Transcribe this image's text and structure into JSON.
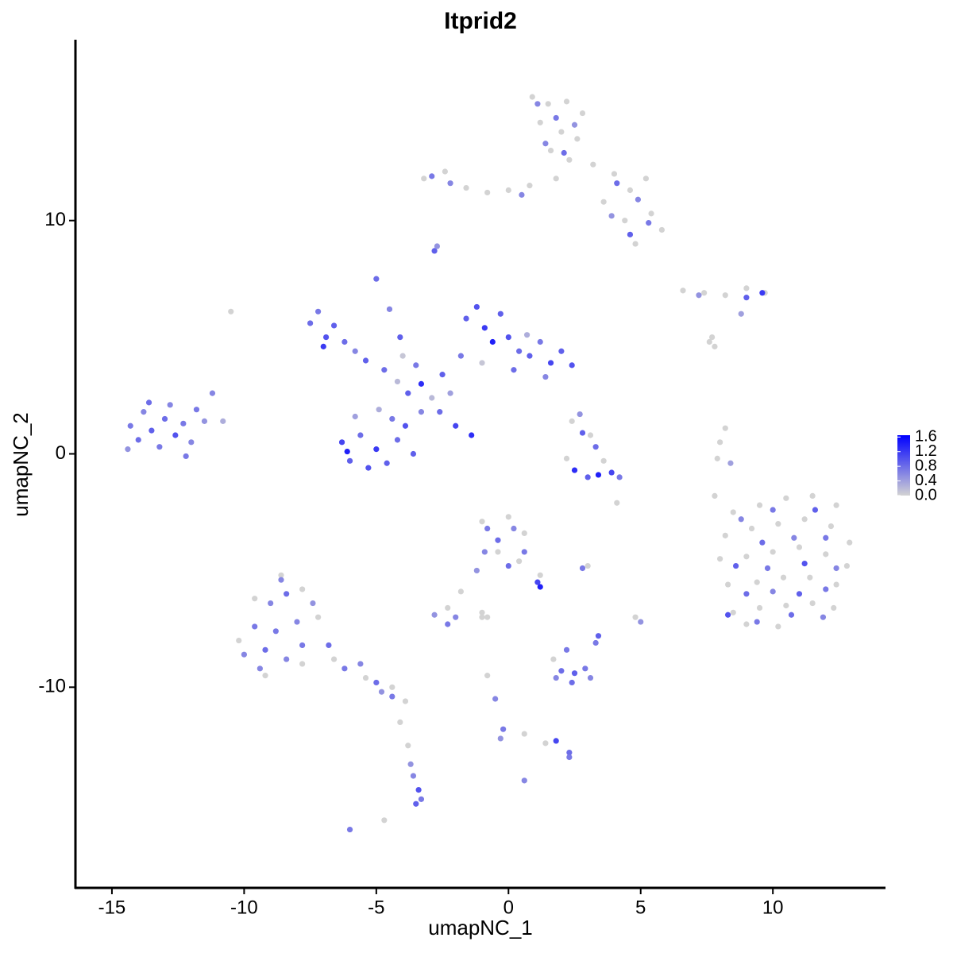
{
  "chart_data": {
    "type": "scatter",
    "title": "Itprid2",
    "x_label": "umapNC_1",
    "y_label": "umapNC_2",
    "xlim": [
      -16.38,
      14.26
    ],
    "ylim": [
      -18.6,
      17.75
    ],
    "xticks": [
      -15,
      -10,
      -5,
      0,
      5,
      10
    ],
    "yticks": [
      -10,
      0,
      10
    ],
    "color_low": "#d3d3d3",
    "color_high": "#0000ff",
    "colorbar_lim": [
      0,
      1.65
    ],
    "colorbar_ticks": [
      {
        "value": 0,
        "label": "0.0"
      },
      0.4,
      0.8,
      1.2,
      1.6
    ],
    "points": [
      [
        -14.3,
        1.2,
        0.7
      ],
      [
        -14.0,
        0.6,
        0.8
      ],
      [
        -13.8,
        1.8,
        0.6
      ],
      [
        -13.5,
        1.0,
        0.9
      ],
      [
        -13.2,
        0.3,
        0.7
      ],
      [
        -13.0,
        1.5,
        0.8
      ],
      [
        -12.8,
        2.1,
        0.6
      ],
      [
        -12.6,
        0.8,
        1.0
      ],
      [
        -12.3,
        1.3,
        0.7
      ],
      [
        -12.0,
        0.5,
        0.6
      ],
      [
        -11.8,
        1.9,
        0.7
      ],
      [
        -11.5,
        1.4,
        0.5
      ],
      [
        -11.2,
        2.6,
        0.6
      ],
      [
        -10.8,
        1.4,
        0.3
      ],
      [
        -14.4,
        0.2,
        0.5
      ],
      [
        -12.2,
        -0.1,
        0.7
      ],
      [
        -13.6,
        2.2,
        0.8
      ],
      [
        -6.3,
        0.5,
        1.1
      ],
      [
        -6.0,
        -0.3,
        0.9
      ],
      [
        -5.6,
        0.8,
        0.8
      ],
      [
        -5.3,
        -0.6,
        1.0
      ],
      [
        -5.0,
        0.2,
        1.2
      ],
      [
        -4.6,
        -0.4,
        0.9
      ],
      [
        -4.2,
        0.6,
        0.8
      ],
      [
        -3.9,
        1.2,
        1.0
      ],
      [
        -3.6,
        0.0,
        0.9
      ],
      [
        -5.8,
        1.6,
        0.4
      ],
      [
        -4.9,
        1.9,
        0.3
      ],
      [
        -4.4,
        1.5,
        0.7
      ],
      [
        -3.3,
        1.8,
        0.6
      ],
      [
        -6.1,
        0.1,
        1.4
      ],
      [
        -7.5,
        5.6,
        0.8
      ],
      [
        -7.2,
        6.1,
        0.7
      ],
      [
        -6.9,
        5.0,
        1.0
      ],
      [
        -6.6,
        5.5,
        0.9
      ],
      [
        -6.2,
        4.8,
        0.8
      ],
      [
        -5.8,
        4.4,
        0.6
      ],
      [
        -5.4,
        4.0,
        0.9
      ],
      [
        -7.0,
        4.6,
        1.2
      ],
      [
        -4.7,
        3.6,
        0.8
      ],
      [
        -4.2,
        3.1,
        0.2
      ],
      [
        -3.8,
        2.6,
        0.9
      ],
      [
        -3.3,
        3.0,
        1.3
      ],
      [
        -2.9,
        2.4,
        0.2
      ],
      [
        -2.5,
        3.4,
        0.9
      ],
      [
        -4.0,
        4.2,
        0.1
      ],
      [
        -3.5,
        3.8,
        0.7
      ],
      [
        -2.2,
        2.6,
        0.4
      ],
      [
        -5.0,
        7.5,
        0.8
      ],
      [
        -4.5,
        6.2,
        0.6
      ],
      [
        -4.1,
        5.0,
        0.9
      ],
      [
        -2.6,
        1.8,
        0.8
      ],
      [
        -2.0,
        1.2,
        1.1
      ],
      [
        -1.4,
        0.8,
        1.3
      ],
      [
        -1.6,
        5.8,
        0.9
      ],
      [
        -1.2,
        6.3,
        1.0
      ],
      [
        -0.9,
        5.4,
        1.2
      ],
      [
        -0.6,
        4.8,
        1.4
      ],
      [
        -0.3,
        6.0,
        0.9
      ],
      [
        0.0,
        5.0,
        1.0
      ],
      [
        0.4,
        4.4,
        0.8
      ],
      [
        0.8,
        4.2,
        0.9
      ],
      [
        1.2,
        4.8,
        0.7
      ],
      [
        1.6,
        3.9,
        1.1
      ],
      [
        2.0,
        4.4,
        0.9
      ],
      [
        2.4,
        3.8,
        1.0
      ],
      [
        -1.8,
        4.2,
        0.7
      ],
      [
        0.2,
        3.6,
        0.8
      ],
      [
        1.4,
        3.3,
        0.6
      ],
      [
        -1.0,
        3.9,
        0.1
      ],
      [
        0.7,
        5.1,
        0.3
      ],
      [
        0.9,
        15.3,
        0.0
      ],
      [
        1.5,
        15.0,
        0.0
      ],
      [
        2.2,
        15.1,
        0.0
      ],
      [
        2.8,
        14.6,
        0.0
      ],
      [
        1.2,
        14.2,
        0.0
      ],
      [
        2.0,
        13.8,
        0.0
      ],
      [
        2.6,
        13.5,
        0.0
      ],
      [
        1.6,
        13.0,
        0.0
      ],
      [
        2.3,
        12.6,
        0.0
      ],
      [
        3.2,
        12.4,
        0.0
      ],
      [
        -3.2,
        11.8,
        0.0
      ],
      [
        -2.4,
        12.1,
        0.0
      ],
      [
        -1.6,
        11.4,
        0.0
      ],
      [
        -0.8,
        11.2,
        0.0
      ],
      [
        0.0,
        11.3,
        0.0
      ],
      [
        0.8,
        11.5,
        0.0
      ],
      [
        1.8,
        11.8,
        0.0
      ],
      [
        4.0,
        12.0,
        0.0
      ],
      [
        4.6,
        11.3,
        0.0
      ],
      [
        5.2,
        11.8,
        0.0
      ],
      [
        5.4,
        10.3,
        0.0
      ],
      [
        4.4,
        10.0,
        0.0
      ],
      [
        5.8,
        9.6,
        0.0
      ],
      [
        4.8,
        9.0,
        0.0
      ],
      [
        3.6,
        10.8,
        0.0
      ],
      [
        1.1,
        15.0,
        0.6
      ],
      [
        1.8,
        14.4,
        0.7
      ],
      [
        2.5,
        14.1,
        0.5
      ],
      [
        1.4,
        13.3,
        0.6
      ],
      [
        2.1,
        12.9,
        0.8
      ],
      [
        -2.9,
        11.9,
        0.7
      ],
      [
        -2.2,
        11.6,
        0.6
      ],
      [
        4.1,
        11.6,
        0.8
      ],
      [
        4.9,
        10.9,
        0.6
      ],
      [
        5.3,
        9.9,
        0.7
      ],
      [
        4.6,
        9.4,
        0.9
      ],
      [
        3.9,
        10.2,
        0.5
      ],
      [
        0.5,
        11.1,
        0.6
      ],
      [
        -2.8,
        8.7,
        0.9
      ],
      [
        -2.7,
        8.9,
        0.5
      ],
      [
        6.6,
        7.0,
        0.0
      ],
      [
        7.4,
        6.9,
        0.0
      ],
      [
        8.2,
        6.8,
        0.0
      ],
      [
        9.0,
        7.1,
        0.0
      ],
      [
        9.7,
        6.9,
        0.0
      ],
      [
        7.2,
        6.8,
        0.5
      ],
      [
        9.0,
        6.7,
        0.9
      ],
      [
        9.6,
        6.9,
        1.2
      ],
      [
        8.8,
        6.0,
        0.4
      ],
      [
        7.7,
        5.0,
        0.0
      ],
      [
        2.4,
        1.4,
        0.0
      ],
      [
        3.1,
        0.8,
        0.0
      ],
      [
        3.6,
        -0.3,
        0.0
      ],
      [
        2.2,
        -0.2,
        0.0
      ],
      [
        2.8,
        0.9,
        0.9
      ],
      [
        3.3,
        0.3,
        0.8
      ],
      [
        2.5,
        -0.7,
        1.3
      ],
      [
        3.0,
        -1.0,
        0.9
      ],
      [
        3.9,
        -0.8,
        1.1
      ],
      [
        4.2,
        -1.0,
        0.7
      ],
      [
        3.4,
        -0.9,
        1.4
      ],
      [
        2.7,
        1.7,
        0.5
      ],
      [
        8.2,
        1.1,
        0.0
      ],
      [
        8.0,
        0.5,
        0.0
      ],
      [
        7.9,
        -0.2,
        0.0
      ],
      [
        8.4,
        -0.4,
        0.4
      ],
      [
        7.8,
        -1.8,
        0.0
      ],
      [
        8.5,
        -2.5,
        0.0
      ],
      [
        9.5,
        -2.2,
        0.0
      ],
      [
        10.5,
        -1.9,
        0.0
      ],
      [
        11.5,
        -1.8,
        0.0
      ],
      [
        12.4,
        -2.2,
        0.0
      ],
      [
        8.2,
        -3.5,
        0.0
      ],
      [
        9.2,
        -3.2,
        0.0
      ],
      [
        10.2,
        -3.0,
        0.0
      ],
      [
        11.2,
        -2.8,
        0.0
      ],
      [
        12.2,
        -3.1,
        0.0
      ],
      [
        12.9,
        -3.8,
        0.0
      ],
      [
        8.0,
        -4.5,
        0.0
      ],
      [
        9.0,
        -4.4,
        0.0
      ],
      [
        10.0,
        -4.2,
        0.0
      ],
      [
        11.0,
        -4.0,
        0.0
      ],
      [
        12.0,
        -4.3,
        0.0
      ],
      [
        12.8,
        -4.8,
        0.0
      ],
      [
        8.3,
        -5.6,
        0.0
      ],
      [
        9.4,
        -5.5,
        0.0
      ],
      [
        10.4,
        -5.3,
        0.0
      ],
      [
        11.4,
        -5.3,
        0.0
      ],
      [
        12.4,
        -5.6,
        0.0
      ],
      [
        8.5,
        -6.8,
        0.0
      ],
      [
        9.5,
        -6.6,
        0.0
      ],
      [
        10.5,
        -6.5,
        0.0
      ],
      [
        11.5,
        -6.4,
        0.0
      ],
      [
        12.3,
        -6.6,
        0.0
      ],
      [
        9.0,
        -7.3,
        0.0
      ],
      [
        10.2,
        -7.4,
        0.0
      ],
      [
        8.8,
        -2.8,
        0.6
      ],
      [
        10.0,
        -2.4,
        0.7
      ],
      [
        11.6,
        -2.4,
        0.9
      ],
      [
        9.6,
        -3.8,
        0.8
      ],
      [
        10.8,
        -3.6,
        0.6
      ],
      [
        12.0,
        -3.6,
        0.7
      ],
      [
        8.6,
        -4.8,
        0.9
      ],
      [
        9.8,
        -4.9,
        0.7
      ],
      [
        11.2,
        -4.7,
        1.0
      ],
      [
        12.4,
        -4.9,
        0.6
      ],
      [
        9.0,
        -6.0,
        0.8
      ],
      [
        10.0,
        -5.9,
        0.6
      ],
      [
        11.0,
        -6.0,
        0.9
      ],
      [
        12.0,
        -5.8,
        0.7
      ],
      [
        8.3,
        -6.9,
        1.0
      ],
      [
        9.4,
        -7.2,
        0.7
      ],
      [
        10.7,
        -6.9,
        0.8
      ],
      [
        11.9,
        -7.0,
        0.6
      ],
      [
        -10.2,
        -8.0,
        0.0
      ],
      [
        -9.6,
        -6.2,
        0.0
      ],
      [
        -8.6,
        -5.2,
        0.0
      ],
      [
        -7.8,
        -5.8,
        0.0
      ],
      [
        -7.2,
        -7.0,
        0.0
      ],
      [
        -9.2,
        -9.5,
        0.0
      ],
      [
        -7.8,
        -9.0,
        0.0
      ],
      [
        -6.6,
        -8.8,
        0.0
      ],
      [
        -5.4,
        -9.6,
        0.0
      ],
      [
        -4.4,
        -10.0,
        0.0
      ],
      [
        -3.9,
        -10.6,
        0.0
      ],
      [
        -10.0,
        -8.6,
        0.6
      ],
      [
        -9.6,
        -7.4,
        0.7
      ],
      [
        -9.2,
        -8.4,
        0.8
      ],
      [
        -9.0,
        -6.4,
        0.6
      ],
      [
        -8.8,
        -7.6,
        0.7
      ],
      [
        -8.4,
        -8.8,
        0.6
      ],
      [
        -8.4,
        -6.0,
        0.8
      ],
      [
        -8.0,
        -7.2,
        0.6
      ],
      [
        -7.8,
        -8.2,
        0.7
      ],
      [
        -7.4,
        -6.4,
        0.5
      ],
      [
        -9.4,
        -9.2,
        0.6
      ],
      [
        -6.8,
        -8.2,
        0.8
      ],
      [
        -6.2,
        -9.2,
        0.7
      ],
      [
        -5.6,
        -9.0,
        0.6
      ],
      [
        -5.0,
        -9.8,
        0.8
      ],
      [
        -4.4,
        -10.4,
        0.7
      ],
      [
        -4.8,
        -10.2,
        0.5
      ],
      [
        -8.6,
        -5.4,
        0.6
      ],
      [
        -3.6,
        -13.8,
        0.6
      ],
      [
        -3.4,
        -14.4,
        1.0
      ],
      [
        -3.5,
        -15.0,
        0.9
      ],
      [
        -3.3,
        -14.8,
        0.7
      ],
      [
        -3.7,
        -13.3,
        0.5
      ],
      [
        -4.1,
        -11.5,
        0.0
      ],
      [
        -3.8,
        -12.5,
        0.0
      ],
      [
        -1.0,
        -2.9,
        0.0
      ],
      [
        0.0,
        -2.7,
        0.0
      ],
      [
        0.6,
        -3.4,
        0.0
      ],
      [
        -0.4,
        -4.2,
        0.0
      ],
      [
        0.4,
        -4.6,
        0.0
      ],
      [
        1.2,
        -5.2,
        0.0
      ],
      [
        -0.8,
        -3.2,
        0.7
      ],
      [
        -0.4,
        -3.7,
        0.8
      ],
      [
        0.2,
        -3.2,
        0.6
      ],
      [
        0.6,
        -4.2,
        0.7
      ],
      [
        -0.9,
        -4.2,
        0.6
      ],
      [
        0.0,
        -4.8,
        0.8
      ],
      [
        1.1,
        -5.5,
        1.1
      ],
      [
        1.2,
        -5.7,
        1.4
      ],
      [
        -1.2,
        -5.0,
        0.5
      ],
      [
        -1.8,
        -5.9,
        0.0
      ],
      [
        -2.3,
        -6.6,
        0.0
      ],
      [
        -2.8,
        -6.9,
        0.5
      ],
      [
        -2.3,
        -7.3,
        0.7
      ],
      [
        -2.0,
        -7.0,
        0.6
      ],
      [
        -1.0,
        -7.0,
        0.0
      ],
      [
        1.7,
        -8.8,
        0.0
      ],
      [
        2.2,
        -8.4,
        0.7
      ],
      [
        2.0,
        -9.3,
        0.8
      ],
      [
        2.5,
        -9.4,
        0.9
      ],
      [
        2.9,
        -9.2,
        0.7
      ],
      [
        3.1,
        -9.6,
        0.6
      ],
      [
        2.4,
        -9.8,
        0.8
      ],
      [
        1.8,
        -9.6,
        0.6
      ],
      [
        -0.8,
        -9.5,
        0.0
      ],
      [
        -0.5,
        -10.5,
        0.6
      ],
      [
        -0.2,
        -11.8,
        0.7
      ],
      [
        -0.3,
        -12.2,
        0.5
      ],
      [
        0.6,
        -12.0,
        0.0
      ],
      [
        1.4,
        -12.4,
        0.0
      ],
      [
        1.8,
        -12.3,
        1.1
      ],
      [
        2.3,
        -12.8,
        0.8
      ],
      [
        2.3,
        -13.0,
        0.7
      ],
      [
        2.8,
        -4.9,
        0.7
      ],
      [
        3.0,
        -4.8,
        0.0
      ],
      [
        5.0,
        -7.2,
        0.5
      ],
      [
        4.8,
        -7.0,
        0.0
      ],
      [
        3.4,
        -7.8,
        0.9
      ],
      [
        3.3,
        -8.1,
        0.7
      ],
      [
        -6.0,
        -16.1,
        0.7
      ],
      [
        0.6,
        -14.0,
        0.6
      ],
      [
        -4.7,
        -15.7,
        0.0
      ],
      [
        -10.5,
        6.1,
        0.0
      ],
      [
        4.1,
        -2.1,
        0.0
      ],
      [
        7.6,
        4.8,
        0.0
      ],
      [
        7.8,
        4.6,
        0.0
      ],
      [
        -1.0,
        -6.8,
        0.0
      ],
      [
        -0.8,
        -7.0,
        0.0
      ]
    ]
  }
}
